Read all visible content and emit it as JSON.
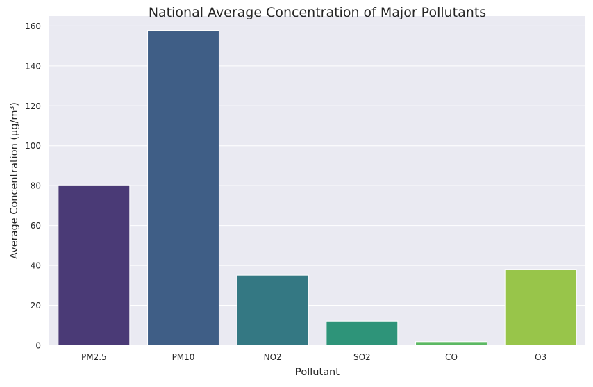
{
  "chart_data": {
    "type": "bar",
    "title": "National Average Concentration of Major Pollutants",
    "xlabel": "Pollutant",
    "ylabel": "Average Concentration (µg/m³)",
    "categories": [
      "PM2.5",
      "PM10",
      "NO2",
      "SO2",
      "CO",
      "O3"
    ],
    "values": [
      80.3,
      157.8,
      35.1,
      12.1,
      1.8,
      38.0
    ],
    "colors": [
      "#4a3a76",
      "#3f5e86",
      "#347883",
      "#2e9479",
      "#5cb863",
      "#98c54a"
    ],
    "ylim": [
      0,
      165
    ],
    "yticks": [
      0,
      20,
      40,
      60,
      80,
      100,
      120,
      140,
      160
    ],
    "grid": true,
    "background_color": "#eaeaf2",
    "grid_color": "#ffffff"
  }
}
